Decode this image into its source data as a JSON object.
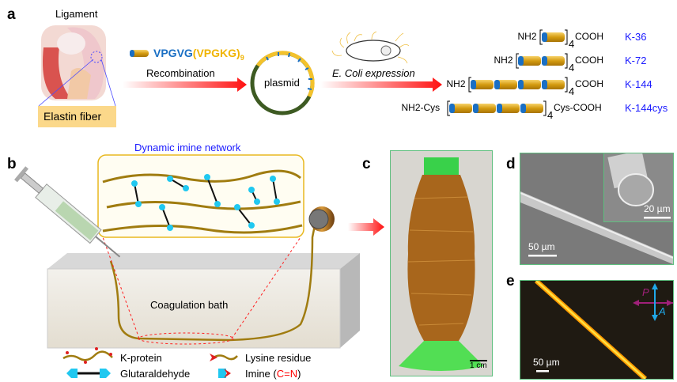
{
  "panels": {
    "a": "a",
    "b": "b",
    "c": "c",
    "d": "d",
    "e": "e"
  },
  "a": {
    "ligament_label": "Ligament",
    "elastin_label": "Elastin fiber",
    "peptide_blue": "VPGVG",
    "peptide_orange": "(VPGKG)",
    "peptide_sub": "9",
    "recombination": "Recombination",
    "plasmid": "plasmid",
    "expression": "E. Coli expression",
    "proteins": [
      {
        "left": "NH2",
        "right": "COOH",
        "repeat": "4",
        "name": "K-36",
        "blocks": 1
      },
      {
        "left": "NH2",
        "right": "COOH",
        "repeat": "4",
        "name": "K-72",
        "blocks": 2
      },
      {
        "left": "NH2",
        "right": "COOH",
        "repeat": "4",
        "name": "K-144",
        "blocks": 4
      },
      {
        "left": "NH2-Cys",
        "right": "Cys-COOH",
        "repeat": "4",
        "name": "K-144cys",
        "blocks": 4
      }
    ]
  },
  "b": {
    "network_title": "Dynamic imine network",
    "bath_label": "Coagulation bath",
    "legend": {
      "k_protein": "K-protein",
      "lysine": "Lysine residue",
      "glutaraldehyde": "Glutaraldehyde",
      "imine_prefix": "Imine (",
      "imine_bond": "C=N",
      "imine_suffix": ")"
    }
  },
  "c": {
    "scale": "1 cm"
  },
  "d": {
    "scale_main": "50 µm",
    "scale_inset": "20 µm"
  },
  "e": {
    "scale": "50 µm",
    "polarizer": "P",
    "analyzer": "A"
  },
  "colors": {
    "label_blue": "#1a1aff",
    "peptide_blue": "#1a6fc4",
    "peptide_orange": "#f0b400",
    "arrow_red": "#ff1010",
    "panel_border": "#5fbf7f",
    "imine_red": "#ff0000"
  }
}
